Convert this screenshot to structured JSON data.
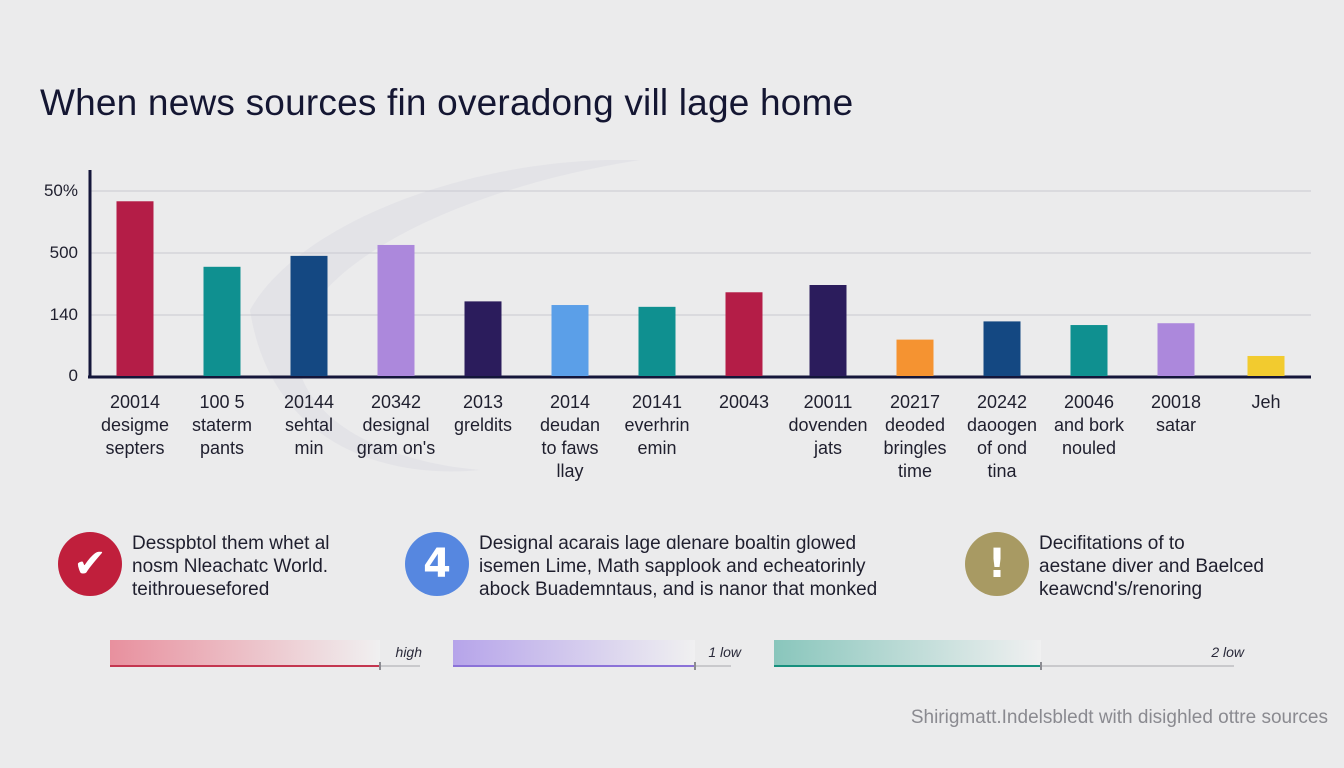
{
  "title": "When news sources fin overadong vill lage home",
  "chart_data": {
    "type": "bar",
    "y_tick_labels": [
      "0",
      "140",
      "500",
      "50%"
    ],
    "categories": [
      [
        "20014",
        "desigme",
        "septers"
      ],
      [
        "100 5",
        "staterm",
        "pants"
      ],
      [
        "20144",
        "sehtal",
        "min"
      ],
      [
        "20342",
        "designal",
        "gram on's"
      ],
      [
        "2013",
        "greldits"
      ],
      [
        "2014",
        "deudan",
        "to faws",
        "llay"
      ],
      [
        "20141",
        "everhrin",
        "emin"
      ],
      [
        "20043"
      ],
      [
        "20011",
        "dovenden",
        "jats"
      ],
      [
        "20217",
        "deoded",
        "bringles",
        "time"
      ],
      [
        "20242",
        "daoogen",
        "of ond",
        "tina"
      ],
      [
        "20046",
        "and bork",
        "nouled"
      ],
      [
        "20018",
        "satar"
      ],
      [
        "Jeh"
      ]
    ],
    "values": [
      0.96,
      0.6,
      0.66,
      0.72,
      0.41,
      0.39,
      0.38,
      0.46,
      0.5,
      0.2,
      0.3,
      0.28,
      0.29,
      0.11
    ],
    "value_unit": "fraction of axis height",
    "colors": [
      "#b41d47",
      "#0f9090",
      "#144882",
      "#ac88dc",
      "#2b1c5c",
      "#5b9fe8",
      "#0f9090",
      "#b41d47",
      "#2b1c5c",
      "#f59331",
      "#144882",
      "#0f9090",
      "#ac88dc",
      "#f2cb2f"
    ],
    "grid": true,
    "legend": "none"
  },
  "callouts": [
    {
      "icon": "check-icon",
      "glyph": "✔",
      "color": "#c01f3c",
      "text": "Desspbtol them whet al\nnosm Nleachatc World.\nteithrouesefored"
    },
    {
      "icon": "number-four-icon",
      "glyph": "4",
      "color": "#5687e0",
      "text": "Designal acarais lage ɑlenare boaltin glowed\nisemen Lime, Math sapplook and echeatorinly\nabock Buademntaus, and is nanor that monked"
    },
    {
      "icon": "exclamation-icon",
      "glyph": "!",
      "color": "#a89a63",
      "text": "Decifitations of to\naestane diver and Baelced\nkeawcnd's/renoring"
    }
  ],
  "meters": [
    {
      "label": "high",
      "level": 0.87,
      "color": "#e8909e",
      "line": "#c43650"
    },
    {
      "label": "1 low",
      "level": 0.87,
      "color": "#b6a4ea",
      "line": "#8b72d8"
    },
    {
      "label": "2 low",
      "level": 0.58,
      "color": "#89c6bc",
      "line": "#17907e"
    }
  ],
  "source": "Shirigmatt.Indelsbledt with disighled ottre sources"
}
